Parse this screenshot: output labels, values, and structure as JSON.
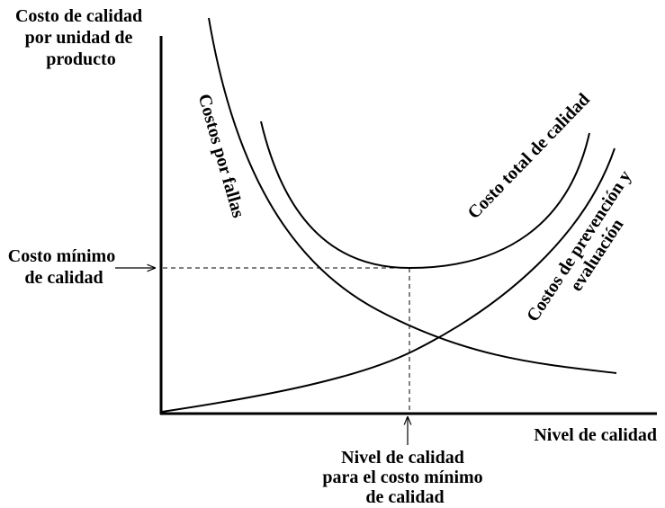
{
  "y_axis_label": [
    "Costo de calidad",
    "por unidad de",
    "producto"
  ],
  "min_cost_label": [
    "Costo mínimo",
    "de calidad"
  ],
  "x_axis_label": "Nivel de calidad",
  "optimum_label": [
    "Nivel de calidad",
    "para el costo mínimo",
    "de calidad"
  ],
  "curves": {
    "failure": "Costos por fallas",
    "total": "Costo total de calidad",
    "prevention": [
      "Costos de prevención y",
      "evaluación"
    ]
  }
}
